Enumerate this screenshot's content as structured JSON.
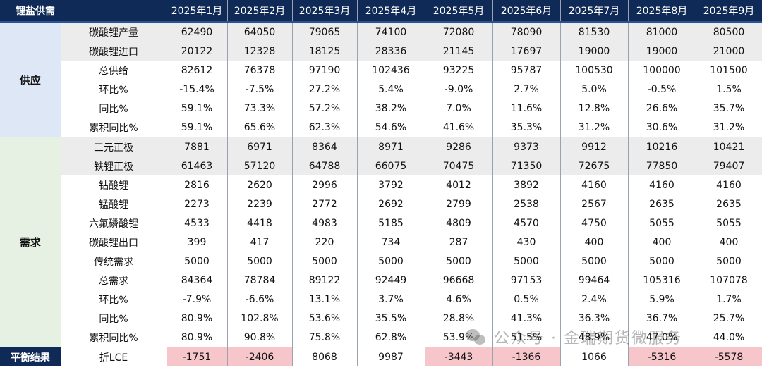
{
  "title": "锂盐供需",
  "months": [
    "2025年1月",
    "2025年2月",
    "2025年3月",
    "2025年4月",
    "2025年5月",
    "2025年6月",
    "2025年7月",
    "2025年8月",
    "2025年9月"
  ],
  "sections": {
    "supply": "供应",
    "demand": "需求",
    "balance": "平衡结果"
  },
  "supply_rows": [
    {
      "label": "碳酸锂产量",
      "values": [
        "62490",
        "64050",
        "79065",
        "74100",
        "72080",
        "78090",
        "81530",
        "81000",
        "80500"
      ]
    },
    {
      "label": "碳酸锂进口",
      "values": [
        "20122",
        "12328",
        "18125",
        "28336",
        "21145",
        "17697",
        "19000",
        "19000",
        "21000"
      ]
    },
    {
      "label": "总供给",
      "values": [
        "82612",
        "76378",
        "97190",
        "102436",
        "93225",
        "95787",
        "100530",
        "100000",
        "101500"
      ]
    },
    {
      "label": "环比%",
      "values": [
        "-15.4%",
        "-7.5%",
        "27.2%",
        "5.4%",
        "-9.0%",
        "2.7%",
        "5.0%",
        "-0.5%",
        "1.5%"
      ]
    },
    {
      "label": "同比%",
      "values": [
        "59.1%",
        "73.3%",
        "57.2%",
        "38.2%",
        "7.0%",
        "11.6%",
        "12.8%",
        "26.6%",
        "35.7%"
      ]
    },
    {
      "label": "累积同比%",
      "values": [
        "59.1%",
        "65.6%",
        "62.3%",
        "54.6%",
        "41.6%",
        "35.3%",
        "31.2%",
        "30.6%",
        "31.2%"
      ]
    }
  ],
  "demand_rows": [
    {
      "label": "三元正极",
      "values": [
        "7881",
        "6971",
        "8364",
        "8971",
        "9286",
        "9373",
        "9912",
        "10216",
        "10421"
      ]
    },
    {
      "label": "铁锂正极",
      "values": [
        "61463",
        "57120",
        "64788",
        "66075",
        "70475",
        "71350",
        "72675",
        "77850",
        "79407"
      ]
    },
    {
      "label": "钴酸锂",
      "values": [
        "2816",
        "2620",
        "2996",
        "3792",
        "4012",
        "3892",
        "4160",
        "4160",
        "4160"
      ]
    },
    {
      "label": "锰酸锂",
      "values": [
        "2273",
        "2239",
        "2772",
        "2692",
        "2799",
        "2538",
        "2567",
        "2635",
        "2635"
      ]
    },
    {
      "label": "六氟磷酸锂",
      "values": [
        "4533",
        "4418",
        "4983",
        "5185",
        "4809",
        "4570",
        "4750",
        "5055",
        "5055"
      ]
    },
    {
      "label": "碳酸锂出口",
      "values": [
        "399",
        "417",
        "220",
        "734",
        "287",
        "430",
        "400",
        "400",
        "400"
      ]
    },
    {
      "label": "传统需求",
      "values": [
        "5000",
        "5000",
        "5000",
        "5000",
        "5000",
        "5000",
        "5000",
        "5000",
        "5000"
      ]
    },
    {
      "label": "总需求",
      "values": [
        "84364",
        "78784",
        "89122",
        "92449",
        "96668",
        "97153",
        "99464",
        "105316",
        "107078"
      ]
    },
    {
      "label": "环比%",
      "values": [
        "-7.9%",
        "-6.6%",
        "13.1%",
        "3.7%",
        "4.6%",
        "0.5%",
        "2.4%",
        "5.9%",
        "1.7%"
      ]
    },
    {
      "label": "同比%",
      "values": [
        "80.9%",
        "102.8%",
        "53.6%",
        "35.5%",
        "28.8%",
        "41.3%",
        "36.3%",
        "36.7%",
        "25.7%"
      ]
    },
    {
      "label": "累积同比%",
      "values": [
        "80.9%",
        "90.8%",
        "75.8%",
        "62.8%",
        "53.9%",
        "51.5%",
        "48.9%",
        "47.0%",
        "44.0%"
      ]
    }
  ],
  "balance_row": {
    "label": "折LCE",
    "values": [
      "-1751",
      "-2406",
      "8068",
      "9987",
      "-3443",
      "-1366",
      "1066",
      "-5316",
      "-5578"
    ]
  },
  "watermark": "公众号 · 金瑞期货微服务",
  "colors": {
    "header_bg": "#102a57",
    "negative_balance_bg": "#f7c6cb",
    "supply_section_bg": "#dde7f5",
    "demand_section_bg": "#e7f1e3",
    "shaded_row_bg": "#ececec"
  },
  "icons": {
    "watermark": "wechat-icon"
  }
}
